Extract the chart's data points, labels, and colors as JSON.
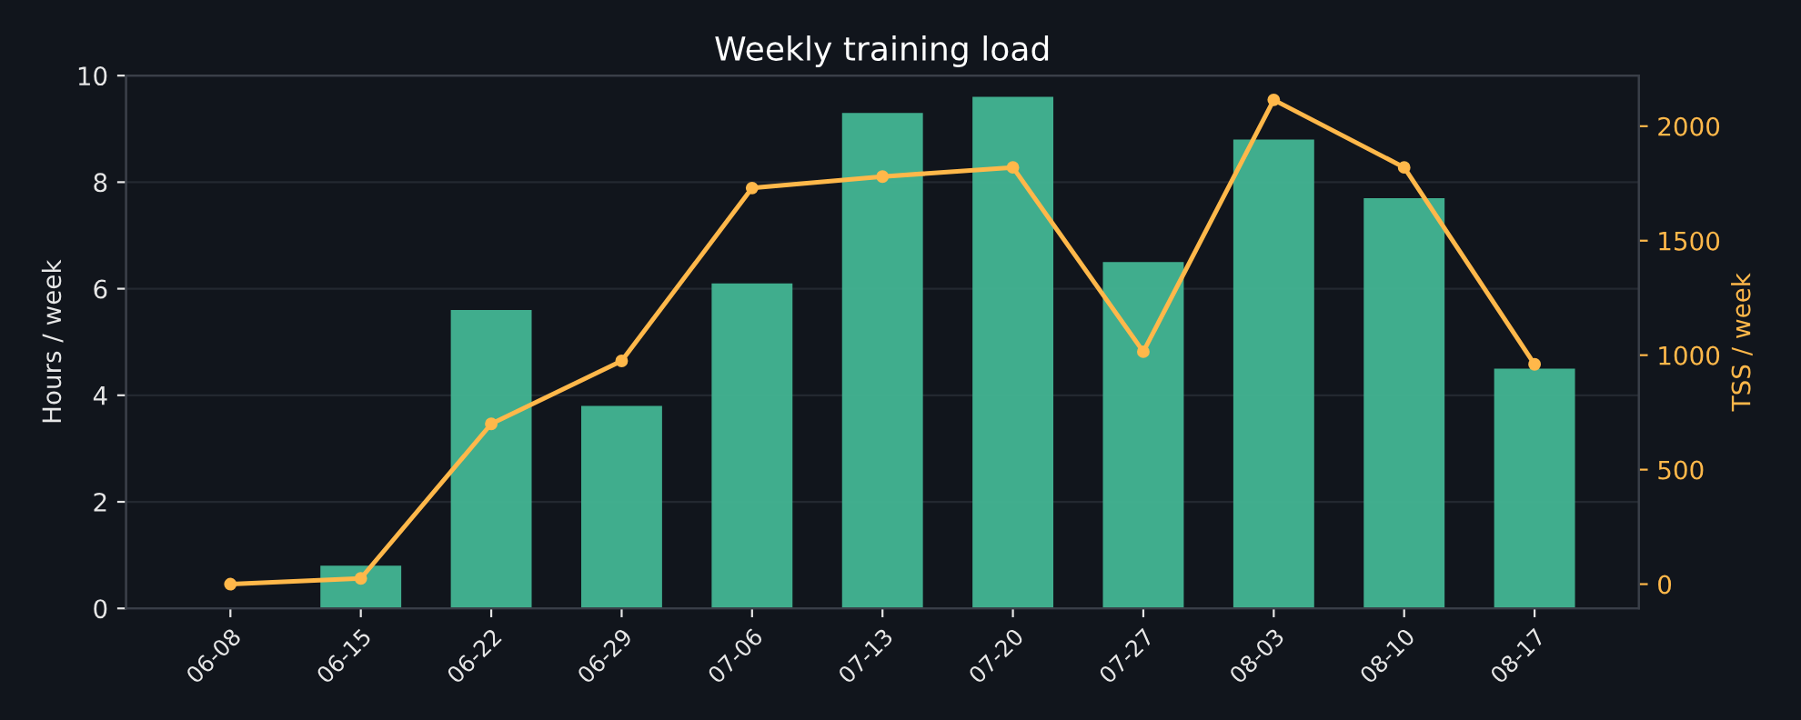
{
  "chart_data": {
    "type": "bar",
    "title": "Weekly training load",
    "ylabel": "Hours / week",
    "y2label": "TSS / week",
    "categories": [
      "06-08",
      "06-15",
      "06-22",
      "06-29",
      "07-06",
      "07-13",
      "07-20",
      "07-27",
      "08-03",
      "08-10",
      "08-17"
    ],
    "series": [
      {
        "name": null,
        "color": "#43b594",
        "values": [
          0,
          0.8,
          5.6,
          3.8,
          6.1,
          9.3,
          9.6,
          6.5,
          8.8,
          7.7,
          4.5
        ]
      },
      {
        "name": null,
        "type": "line",
        "axis": "y2",
        "color": "#ffb84a",
        "values": [
          0,
          25,
          700,
          975,
          1730,
          1780,
          1820,
          1015,
          2115,
          1820,
          960
        ]
      }
    ],
    "ylim": [
      0,
      10
    ],
    "yticks": [
      0,
      2,
      4,
      6,
      8,
      10
    ],
    "y2lim": [
      -106,
      2221
    ],
    "y2ticks": [
      0,
      500,
      1000,
      1500,
      2000
    ],
    "grid": "y",
    "marker": "circle",
    "line_style": "solid",
    "legend": false
  }
}
